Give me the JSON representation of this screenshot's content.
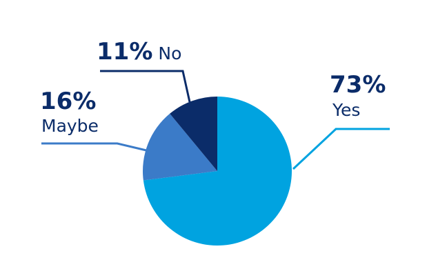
{
  "chart_data": {
    "type": "pie",
    "categories": [
      "Yes",
      "Maybe",
      "No"
    ],
    "values": [
      73,
      16,
      11
    ],
    "value_labels": [
      "73%",
      "16%",
      "11%"
    ],
    "colors": [
      "#00a3e0",
      "#3b7bc8",
      "#0b2c69"
    ]
  }
}
